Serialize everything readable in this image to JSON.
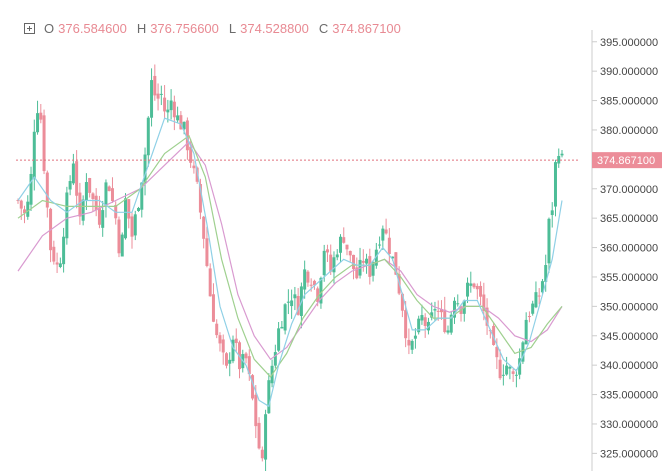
{
  "legend": {
    "o_label": "O",
    "o_value": "376.584600",
    "h_label": "H",
    "h_value": "376.756600",
    "l_label": "L",
    "l_value": "374.528800",
    "c_label": "C",
    "c_value": "374.867100"
  },
  "colors": {
    "up": "#4dbd97",
    "down": "#ec8d99",
    "ma_fast": "#8fd0e6",
    "ma_mid": "#9fd08f",
    "ma_slow": "#d99ad0",
    "price_line": "#e0707c",
    "axis": "#cccccc"
  },
  "chart_data": {
    "type": "candlestick",
    "title": "",
    "ylim": [
      322,
      397
    ],
    "yticks": [
      "395.000000",
      "390.000000",
      "385.000000",
      "380.000000",
      "375.000000",
      "370.000000",
      "365.000000",
      "360.000000",
      "355.000000",
      "350.000000",
      "345.000000",
      "340.000000",
      "335.000000",
      "330.000000",
      "325.000000"
    ],
    "ytick_values": [
      395,
      390,
      385,
      380,
      375,
      370,
      365,
      360,
      355,
      350,
      345,
      340,
      335,
      330,
      325
    ],
    "last_price": 374.8671,
    "last_price_label": "374.867100",
    "close_path": [
      [
        0,
        368
      ],
      [
        5,
        365
      ],
      [
        8,
        372
      ],
      [
        11,
        385
      ],
      [
        14,
        382
      ],
      [
        17,
        370
      ],
      [
        20,
        360
      ],
      [
        25,
        356
      ],
      [
        30,
        368
      ],
      [
        34,
        375
      ],
      [
        38,
        364
      ],
      [
        42,
        372
      ],
      [
        46,
        368
      ],
      [
        50,
        365
      ],
      [
        55,
        372
      ],
      [
        60,
        365
      ],
      [
        63,
        358
      ],
      [
        66,
        368
      ],
      [
        70,
        362
      ],
      [
        74,
        368
      ],
      [
        78,
        376
      ],
      [
        82,
        388
      ],
      [
        85,
        385
      ],
      [
        88,
        386
      ],
      [
        91,
        382
      ],
      [
        94,
        385
      ],
      [
        98,
        382
      ],
      [
        102,
        380
      ],
      [
        106,
        375
      ],
      [
        110,
        370
      ],
      [
        114,
        362
      ],
      [
        118,
        352
      ],
      [
        122,
        345
      ],
      [
        125,
        342
      ],
      [
        128,
        339
      ],
      [
        132,
        345
      ],
      [
        136,
        340
      ],
      [
        140,
        341
      ],
      [
        144,
        334
      ],
      [
        148,
        326
      ],
      [
        150,
        323
      ],
      [
        152,
        333
      ],
      [
        156,
        340
      ],
      [
        160,
        346
      ],
      [
        164,
        350
      ],
      [
        168,
        352
      ],
      [
        172,
        350
      ],
      [
        176,
        356
      ],
      [
        180,
        355
      ],
      [
        184,
        352
      ],
      [
        188,
        360
      ],
      [
        192,
        356
      ],
      [
        196,
        360
      ],
      [
        200,
        362
      ],
      [
        204,
        358
      ],
      [
        208,
        355
      ],
      [
        212,
        358
      ],
      [
        216,
        356
      ],
      [
        220,
        360
      ],
      [
        224,
        364
      ],
      [
        228,
        360
      ],
      [
        232,
        356
      ],
      [
        236,
        350
      ],
      [
        240,
        342
      ],
      [
        244,
        345
      ],
      [
        248,
        348
      ],
      [
        252,
        346
      ],
      [
        256,
        350
      ],
      [
        260,
        348
      ],
      [
        264,
        346
      ],
      [
        268,
        352
      ],
      [
        272,
        350
      ],
      [
        276,
        353
      ],
      [
        280,
        354
      ],
      [
        284,
        351
      ],
      [
        288,
        347
      ],
      [
        292,
        342
      ],
      [
        296,
        339
      ],
      [
        300,
        340
      ],
      [
        304,
        338
      ],
      [
        308,
        341
      ],
      [
        312,
        348
      ],
      [
        316,
        350
      ],
      [
        320,
        352
      ],
      [
        324,
        357
      ],
      [
        326,
        364
      ],
      [
        328,
        367
      ],
      [
        330,
        374
      ],
      [
        332,
        377
      ],
      [
        334,
        374.87
      ]
    ],
    "ma_fast_path": [
      [
        0,
        368
      ],
      [
        10,
        372
      ],
      [
        20,
        368
      ],
      [
        30,
        366
      ],
      [
        40,
        368
      ],
      [
        50,
        368
      ],
      [
        60,
        366
      ],
      [
        70,
        366
      ],
      [
        80,
        374
      ],
      [
        90,
        382
      ],
      [
        100,
        381
      ],
      [
        108,
        376
      ],
      [
        116,
        364
      ],
      [
        124,
        350
      ],
      [
        132,
        343
      ],
      [
        140,
        340
      ],
      [
        148,
        334
      ],
      [
        154,
        333
      ],
      [
        160,
        340
      ],
      [
        168,
        347
      ],
      [
        176,
        352
      ],
      [
        184,
        354
      ],
      [
        192,
        356
      ],
      [
        200,
        358
      ],
      [
        208,
        357
      ],
      [
        216,
        357
      ],
      [
        224,
        360
      ],
      [
        230,
        358
      ],
      [
        236,
        352
      ],
      [
        242,
        346
      ],
      [
        250,
        346
      ],
      [
        258,
        348
      ],
      [
        266,
        348
      ],
      [
        274,
        351
      ],
      [
        282,
        351
      ],
      [
        290,
        346
      ],
      [
        298,
        341
      ],
      [
        306,
        339
      ],
      [
        314,
        344
      ],
      [
        322,
        352
      ],
      [
        328,
        358
      ],
      [
        334,
        368
      ]
    ],
    "ma_mid_path": [
      [
        0,
        365
      ],
      [
        15,
        368
      ],
      [
        30,
        367
      ],
      [
        45,
        367
      ],
      [
        60,
        367
      ],
      [
        75,
        370
      ],
      [
        90,
        376
      ],
      [
        105,
        379
      ],
      [
        115,
        372
      ],
      [
        125,
        358
      ],
      [
        135,
        348
      ],
      [
        145,
        341
      ],
      [
        155,
        338
      ],
      [
        165,
        342
      ],
      [
        175,
        348
      ],
      [
        185,
        352
      ],
      [
        195,
        355
      ],
      [
        205,
        357
      ],
      [
        215,
        357
      ],
      [
        225,
        358
      ],
      [
        235,
        355
      ],
      [
        245,
        351
      ],
      [
        255,
        348
      ],
      [
        265,
        348
      ],
      [
        275,
        350
      ],
      [
        285,
        350
      ],
      [
        295,
        346
      ],
      [
        305,
        342
      ],
      [
        315,
        343
      ],
      [
        325,
        347
      ],
      [
        334,
        350
      ]
    ],
    "ma_slow_path": [
      [
        0,
        356
      ],
      [
        15,
        362
      ],
      [
        30,
        365
      ],
      [
        45,
        366
      ],
      [
        60,
        368
      ],
      [
        75,
        370
      ],
      [
        90,
        374
      ],
      [
        105,
        378
      ],
      [
        115,
        374
      ],
      [
        125,
        364
      ],
      [
        135,
        352
      ],
      [
        145,
        345
      ],
      [
        155,
        341
      ],
      [
        165,
        343
      ],
      [
        175,
        347
      ],
      [
        185,
        351
      ],
      [
        195,
        354
      ],
      [
        205,
        356
      ],
      [
        215,
        357
      ],
      [
        225,
        358
      ],
      [
        235,
        356
      ],
      [
        245,
        352
      ],
      [
        255,
        350
      ],
      [
        265,
        349
      ],
      [
        275,
        350
      ],
      [
        285,
        350
      ],
      [
        295,
        348
      ],
      [
        305,
        345
      ],
      [
        315,
        344
      ],
      [
        325,
        346
      ],
      [
        334,
        350
      ]
    ]
  }
}
